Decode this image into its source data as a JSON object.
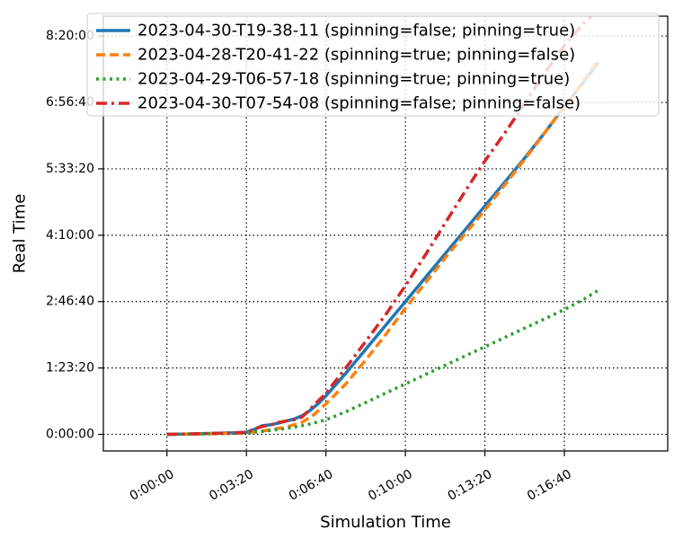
{
  "chart_data": {
    "type": "line",
    "xlabel": "Simulation Time",
    "ylabel": "Real Time",
    "xlim": [
      -160,
      1260
    ],
    "ylim": [
      -1250,
      31500
    ],
    "x_ticks": [
      {
        "value": 0,
        "label": "0:00:00"
      },
      {
        "value": 200,
        "label": "0:03:20"
      },
      {
        "value": 400,
        "label": "0:06:40"
      },
      {
        "value": 600,
        "label": "0:10:00"
      },
      {
        "value": 800,
        "label": "0:13:20"
      },
      {
        "value": 1000,
        "label": "0:16:40"
      }
    ],
    "y_ticks": [
      {
        "value": 0,
        "label": "0:00:00"
      },
      {
        "value": 5000,
        "label": "1:23:20"
      },
      {
        "value": 10000,
        "label": "2:46:40"
      },
      {
        "value": 15000,
        "label": "4:10:00"
      },
      {
        "value": 20000,
        "label": "5:33:20"
      },
      {
        "value": 25000,
        "label": "6:56:40"
      },
      {
        "value": 30000,
        "label": "8:20:00"
      }
    ],
    "grid": true,
    "legend_position": "top-right",
    "series": [
      {
        "name": "2023-04-30-T19-38-11 (spinning=false; pinning=true)",
        "color": "#1f77b4",
        "dash": "solid",
        "x": [
          0,
          50,
          100,
          150,
          200,
          220,
          240,
          260,
          280,
          300,
          320,
          340,
          360,
          380,
          400,
          450,
          500,
          550,
          600,
          650,
          700,
          750,
          800,
          850,
          900,
          950,
          1000,
          1050,
          1085
        ],
        "y": [
          0,
          30,
          60,
          100,
          150,
          380,
          650,
          720,
          850,
          1000,
          1150,
          1400,
          1800,
          2300,
          2900,
          4600,
          6400,
          8200,
          10000,
          11800,
          13600,
          15400,
          17200,
          19000,
          20800,
          22700,
          24700,
          26600,
          28000
        ]
      },
      {
        "name": "2023-04-28-T20-41-22 (spinning=true; pinning=false)",
        "color": "#ff7f0e",
        "dash": "dashed",
        "x": [
          0,
          50,
          100,
          150,
          200,
          250,
          300,
          340,
          370,
          400,
          450,
          500,
          550,
          600,
          650,
          700,
          750,
          800,
          850,
          900,
          950,
          1000,
          1050,
          1085
        ],
        "y": [
          0,
          20,
          40,
          70,
          100,
          300,
          550,
          900,
          1500,
          2300,
          3800,
          5600,
          7500,
          9500,
          11400,
          13300,
          15100,
          16900,
          18800,
          20700,
          22700,
          24700,
          26700,
          28200
        ]
      },
      {
        "name": "2023-04-29-T06-57-18 (spinning=true; pinning=true)",
        "color": "#2ca02c",
        "dash": "dotted",
        "x": [
          0,
          50,
          100,
          150,
          200,
          250,
          300,
          350,
          400,
          450,
          500,
          550,
          600,
          650,
          700,
          750,
          800,
          850,
          900,
          950,
          1000,
          1050,
          1085
        ],
        "y": [
          0,
          20,
          40,
          60,
          100,
          250,
          450,
          700,
          1100,
          1700,
          2400,
          3100,
          3800,
          4500,
          5200,
          5900,
          6600,
          7300,
          8000,
          8700,
          9400,
          10200,
          10850
        ]
      },
      {
        "name": "2023-04-30-T07-54-08 (spinning=false; pinning=false)",
        "color": "#d62728",
        "dash": "dashdot",
        "x": [
          0,
          50,
          100,
          150,
          200,
          220,
          240,
          260,
          280,
          300,
          320,
          340,
          360,
          380,
          400,
          450,
          500,
          550,
          600,
          650,
          700,
          750,
          800,
          850,
          900,
          950,
          1000,
          1050,
          1085
        ],
        "y": [
          0,
          30,
          60,
          100,
          150,
          400,
          600,
          700,
          900,
          1000,
          1100,
          1300,
          1900,
          2500,
          3100,
          5000,
          7000,
          9000,
          11200,
          13500,
          15900,
          18300,
          20600,
          22700,
          24900,
          27200,
          29300,
          31000,
          32000
        ]
      }
    ]
  }
}
